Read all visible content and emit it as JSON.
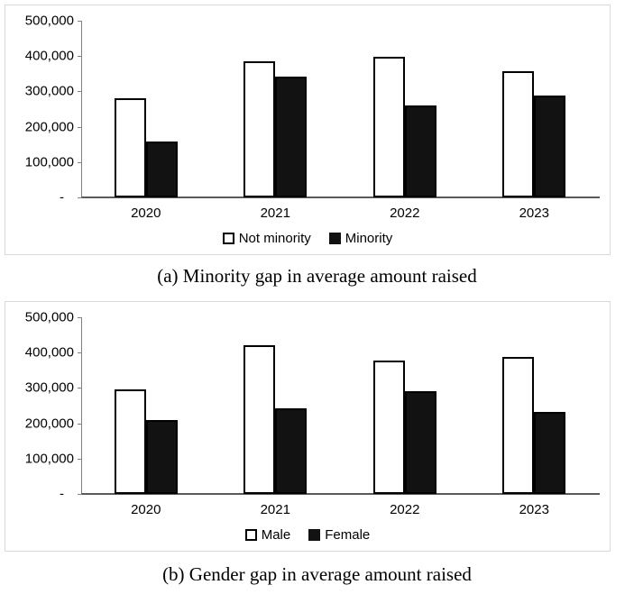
{
  "colors": {
    "bar_fill_light": "#ffffff",
    "bar_fill_dark": "#121212",
    "bar_border": "#000000",
    "axis_line": "#7f7f7f",
    "panel_border": "#d9d9d9",
    "text": "#000000"
  },
  "chart_data": [
    {
      "type": "bar",
      "caption": "(a) Minority gap in average amount raised",
      "categories": [
        "2020",
        "2021",
        "2022",
        "2023"
      ],
      "series": [
        {
          "name": "Not minority",
          "style": "light",
          "values": [
            280000,
            385000,
            398000,
            358000
          ]
        },
        {
          "name": "Minority",
          "style": "dark",
          "values": [
            158000,
            343000,
            259000,
            287000
          ]
        }
      ],
      "title": "",
      "xlabel": "",
      "ylabel": "",
      "ylim": [
        0,
        500000
      ],
      "y_tick_step": 100000,
      "y_tick_labels": [
        "500,000",
        "400,000",
        "300,000",
        "200,000",
        "100,000",
        "-"
      ],
      "grid": false,
      "legend_position": "bottom"
    },
    {
      "type": "bar",
      "caption": "(b) Gender gap in average amount raised",
      "categories": [
        "2020",
        "2021",
        "2022",
        "2023"
      ],
      "series": [
        {
          "name": "Male",
          "style": "light",
          "values": [
            295000,
            420000,
            377000,
            388000
          ]
        },
        {
          "name": "Female",
          "style": "dark",
          "values": [
            208000,
            243000,
            292000,
            233000
          ]
        }
      ],
      "title": "",
      "xlabel": "",
      "ylabel": "",
      "ylim": [
        0,
        500000
      ],
      "y_tick_step": 100000,
      "y_tick_labels": [
        "500,000",
        "400,000",
        "300,000",
        "200,000",
        "100,000",
        "-"
      ],
      "grid": false,
      "legend_position": "bottom"
    }
  ]
}
